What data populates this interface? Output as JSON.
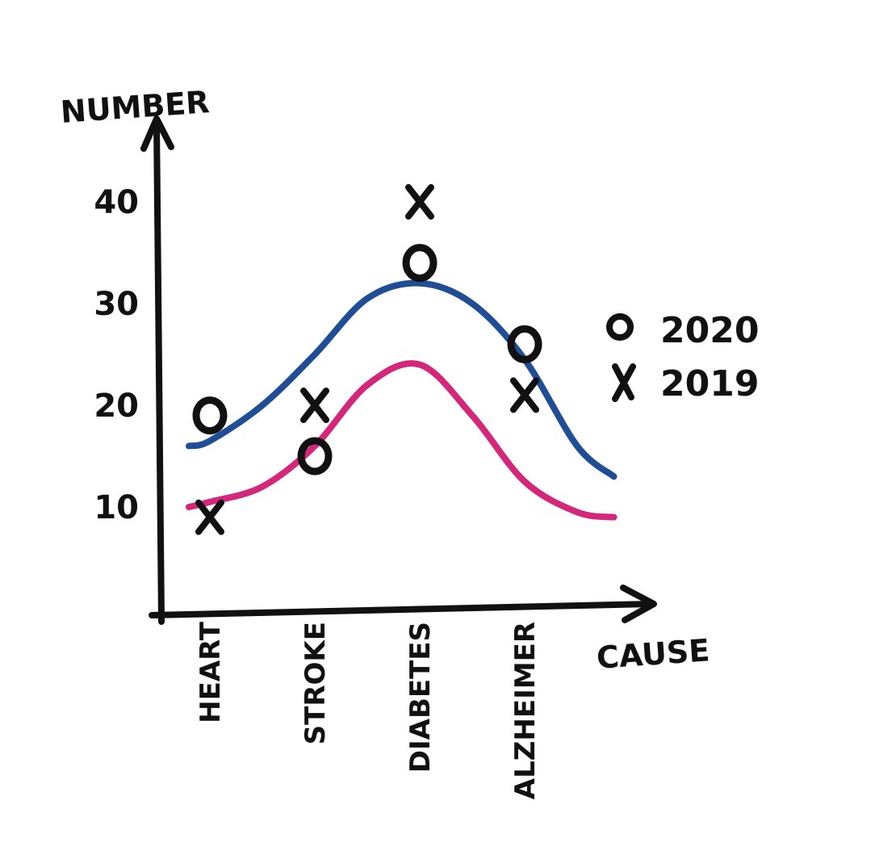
{
  "chart_data": {
    "type": "scatter",
    "xlabel": "CAUSE",
    "ylabel": "NUMBER",
    "categories": [
      "HEART",
      "STROKE",
      "DIABETES",
      "ALZHEIMER"
    ],
    "yticks": [
      "10",
      "20",
      "30",
      "40"
    ],
    "ylim": [
      0,
      50
    ],
    "grid": false,
    "legend_position": "right",
    "series": [
      {
        "name": "2020",
        "marker": "O",
        "values": [
          19,
          15,
          34,
          26
        ]
      },
      {
        "name": "2019",
        "marker": "X",
        "values": [
          9,
          20,
          40,
          21
        ]
      }
    ],
    "trend_lines": [
      {
        "color": "#1f4e96",
        "x": [
          -0.2,
          0,
          0.5,
          1,
          1.5,
          2,
          2.5,
          3,
          3.5,
          3.85
        ],
        "y": [
          16,
          16.5,
          20,
          25,
          30.5,
          32,
          30,
          24.5,
          16,
          13
        ]
      },
      {
        "color": "#d4267a",
        "x": [
          -0.2,
          0,
          0.5,
          1,
          1.5,
          2,
          2.5,
          3,
          3.5,
          3.85
        ],
        "y": [
          10,
          10.5,
          12,
          16,
          22,
          24,
          19,
          12.5,
          9.5,
          9
        ]
      }
    ]
  }
}
